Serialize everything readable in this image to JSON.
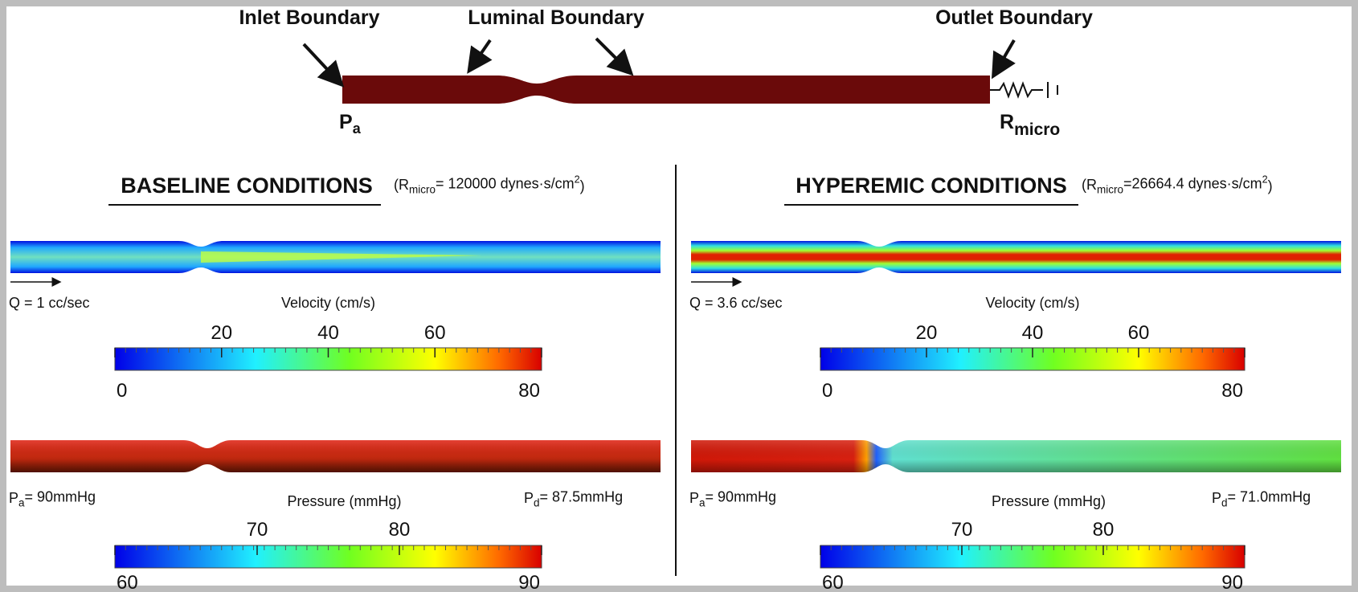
{
  "top": {
    "labels": [
      "Inlet Boundary",
      "Luminal Boundary",
      "Outlet Boundary"
    ],
    "pa": {
      "symbol": "P",
      "subscript": "a"
    },
    "rmicro": {
      "symbol": "R",
      "subscript": "micro"
    }
  },
  "panels": [
    {
      "title": "BASELINE CONDITIONS",
      "resistance": {
        "prefix": "(R",
        "subscript": "micro",
        "text": "= 120000 dynes·s/cm",
        "superscript": "2",
        "suffix": ")"
      },
      "flow": "Q = 1 cc/sec",
      "velocity": {
        "label": "Velocity (cm/s)",
        "ticks": [
          0,
          20,
          40,
          60,
          80
        ]
      },
      "pressure": {
        "label": "Pressure (mmHg)",
        "ticks": [
          60,
          70,
          80,
          90
        ],
        "pa": {
          "symbol": "P",
          "subscript": "a",
          "text": "= 90mmHg"
        },
        "pd": {
          "symbol": "P",
          "subscript": "d",
          "text": "= 87.5mmHg"
        }
      }
    },
    {
      "title": "HYPEREMIC CONDITIONS",
      "resistance": {
        "prefix": "(R",
        "subscript": "micro",
        "text": "=26664.4 dynes·s/cm",
        "superscript": "2",
        "suffix": ")"
      },
      "flow": "Q = 3.6 cc/sec",
      "velocity": {
        "label": "Velocity (cm/s)",
        "ticks": [
          0,
          20,
          40,
          60,
          80
        ]
      },
      "pressure": {
        "label": "Pressure (mmHg)",
        "ticks": [
          60,
          70,
          80,
          90
        ],
        "pa": {
          "symbol": "P",
          "subscript": "a",
          "text": "= 90mmHg"
        },
        "pd": {
          "symbol": "P",
          "subscript": "d",
          "text": "= 71.0mmHg"
        }
      }
    }
  ]
}
